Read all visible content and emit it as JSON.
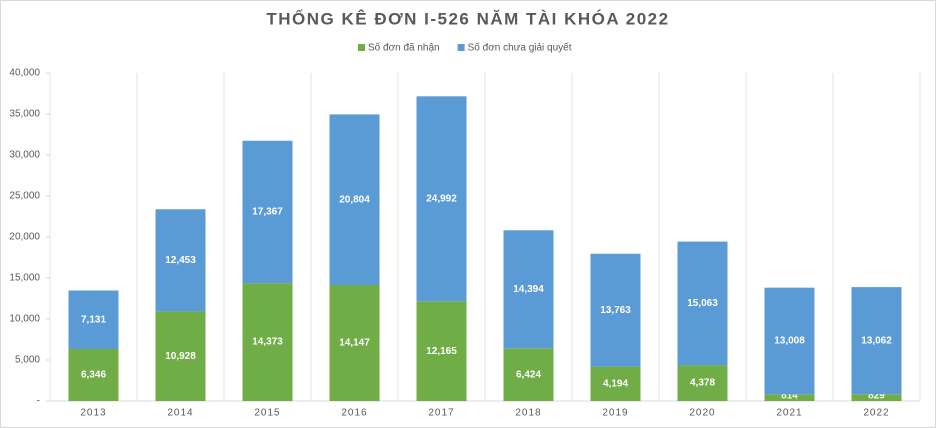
{
  "chart_data": {
    "type": "stacked-bar",
    "title": "THỐNG KÊ ĐƠN I-526 NĂM TÀI KHÓA 2022",
    "categories": [
      "2013",
      "2014",
      "2015",
      "2016",
      "2017",
      "2018",
      "2019",
      "2020",
      "2021",
      "2022"
    ],
    "series": [
      {
        "name": "Số đơn đã nhận",
        "color": "#70ad47",
        "values": [
          6346,
          10928,
          14373,
          14147,
          12165,
          6424,
          4194,
          4378,
          814,
          829
        ],
        "value_labels": [
          "6,346",
          "10,928",
          "14,373",
          "14,147",
          "12,165",
          "6,424",
          "4,194",
          "4,378",
          "814",
          "829"
        ]
      },
      {
        "name": "Số đơn chưa giải quyết",
        "color": "#5b9bd5",
        "values": [
          7131,
          12453,
          17367,
          20804,
          24992,
          14394,
          13763,
          15063,
          13008,
          13062
        ],
        "value_labels": [
          "7,131",
          "12,453",
          "17,367",
          "20,804",
          "24,992",
          "14,394",
          "13,763",
          "15,063",
          "13,008",
          "13,062"
        ]
      }
    ],
    "ylim": [
      0,
      40000
    ],
    "yticks": [
      {
        "value": 0,
        "label": "-"
      },
      {
        "value": 5000,
        "label": "5,000"
      },
      {
        "value": 10000,
        "label": "10,000"
      },
      {
        "value": 15000,
        "label": "15,000"
      },
      {
        "value": 20000,
        "label": "20,000"
      },
      {
        "value": 25000,
        "label": "25,000"
      },
      {
        "value": 30000,
        "label": "30,000"
      },
      {
        "value": 35000,
        "label": "35,000"
      },
      {
        "value": 40000,
        "label": "40,000"
      }
    ],
    "legend": "top"
  }
}
